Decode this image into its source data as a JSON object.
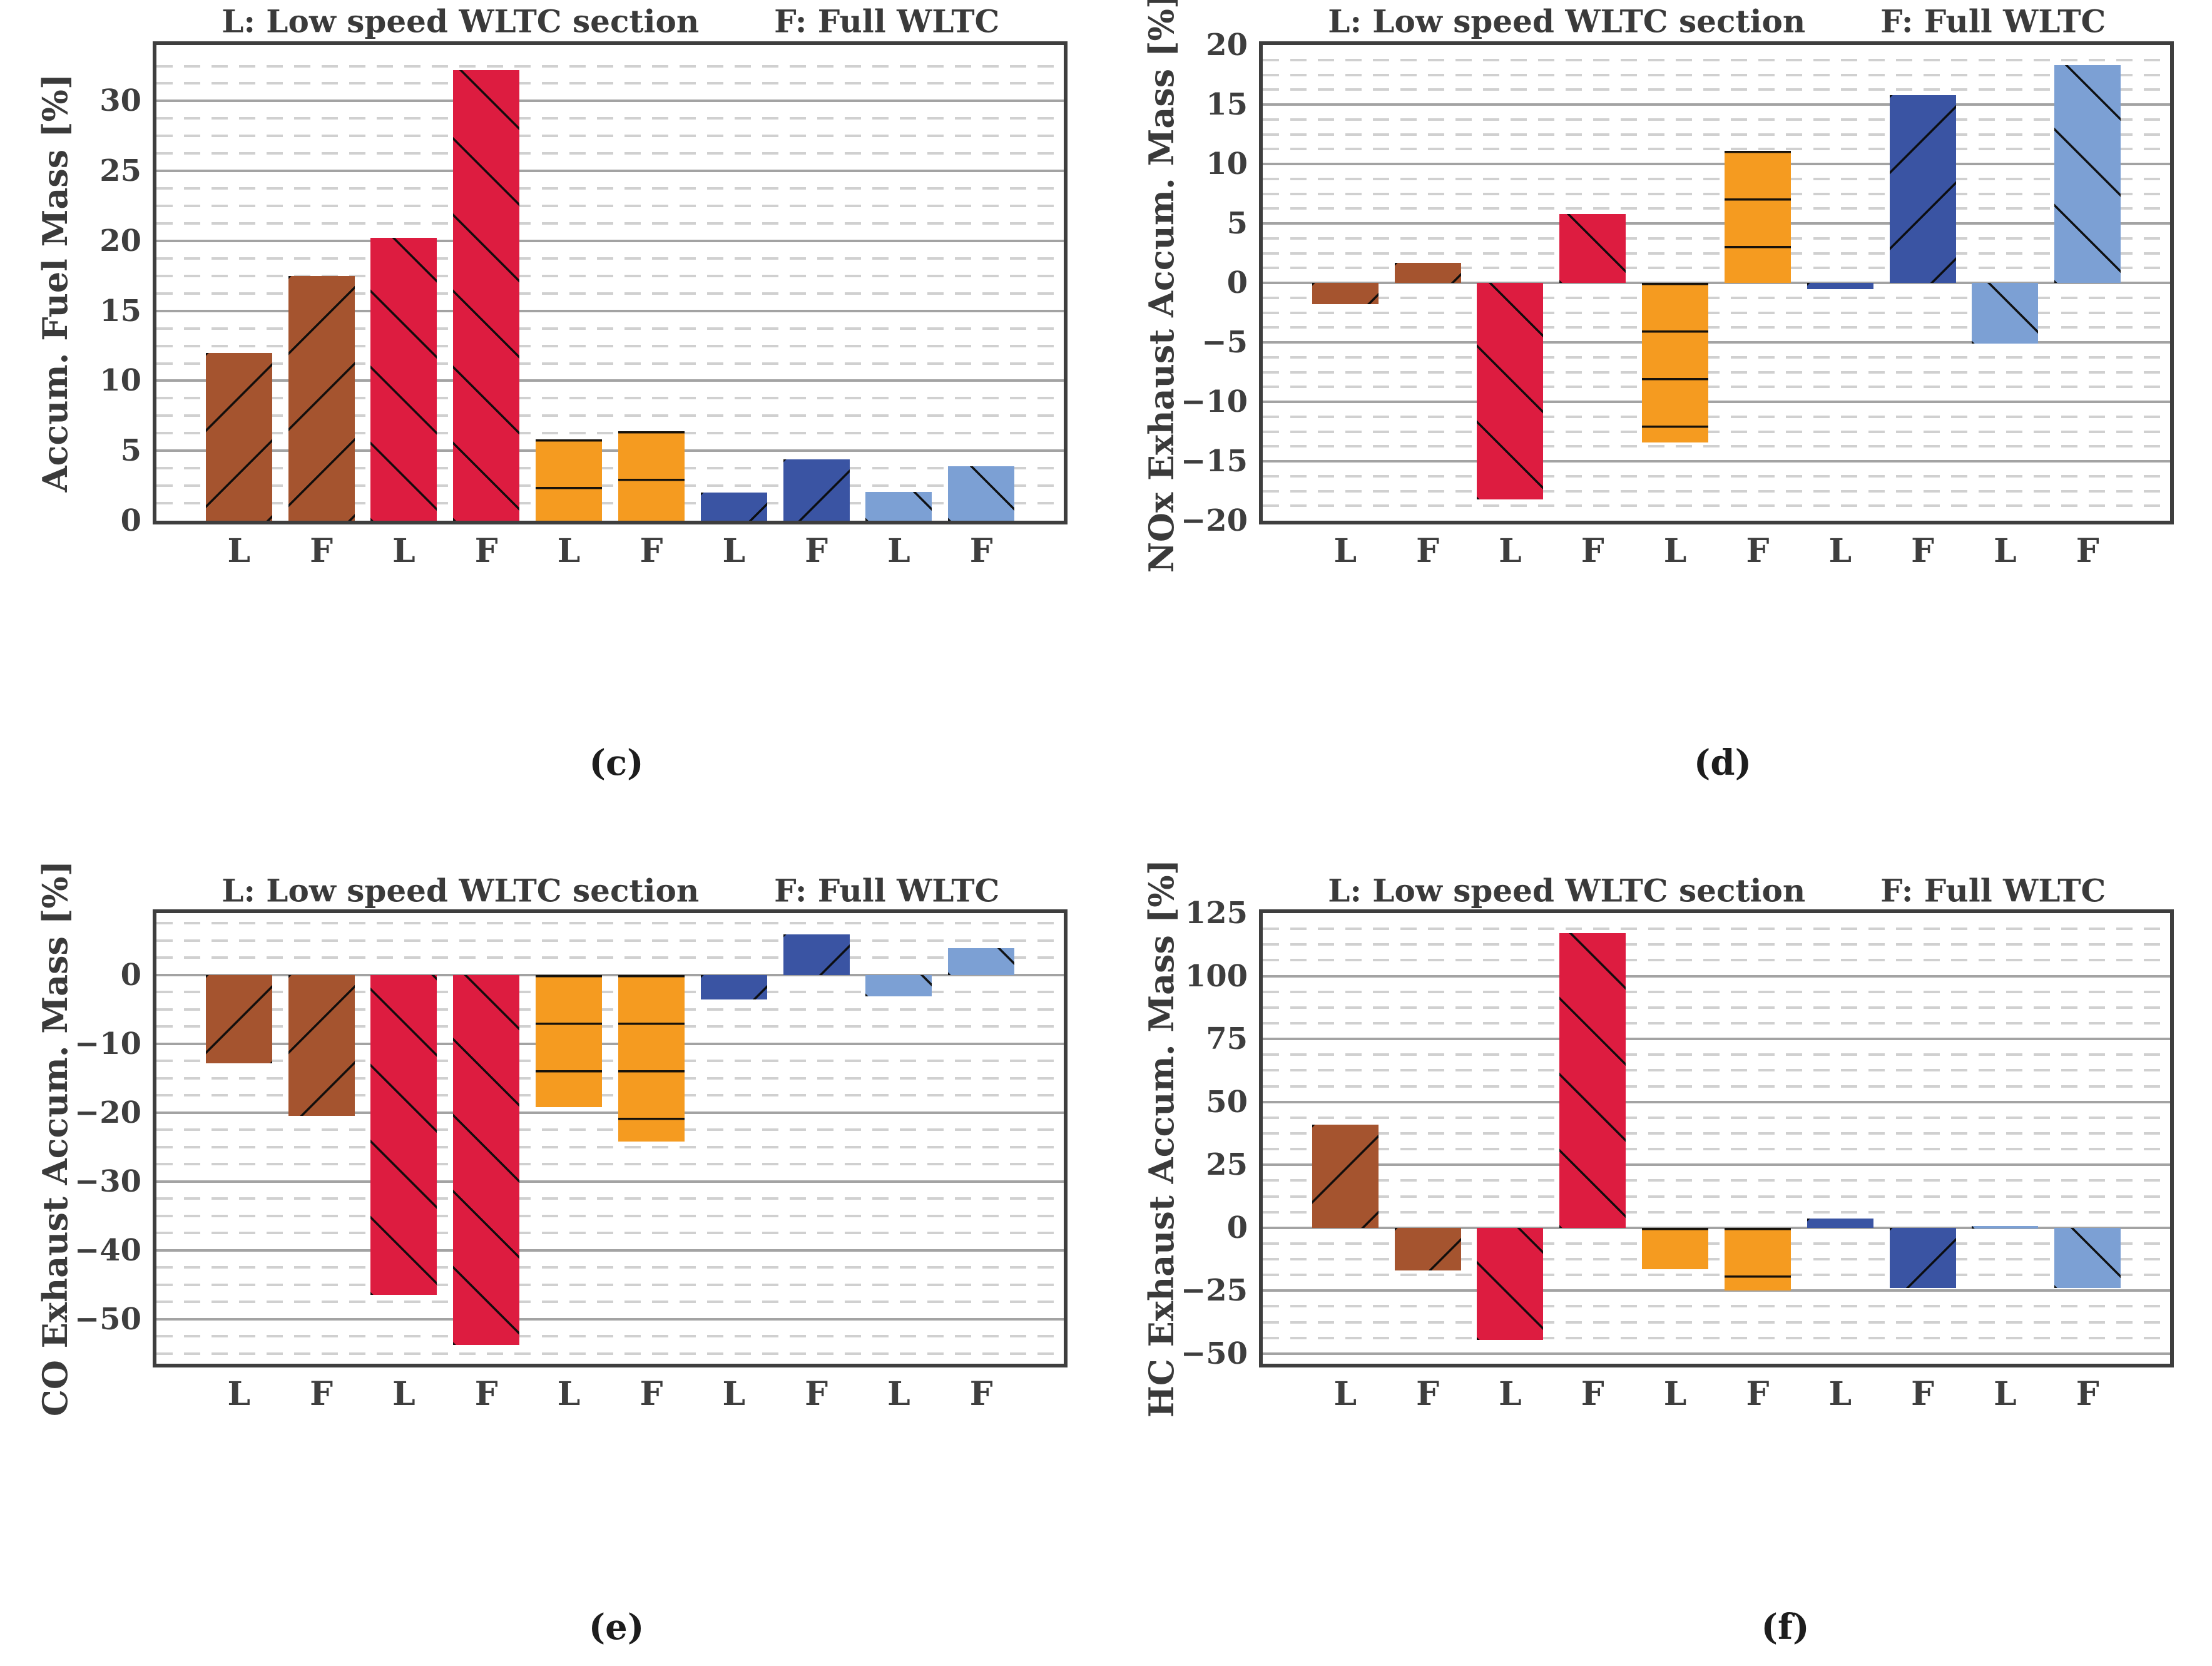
{
  "shared": {
    "title_left": "L: Low speed WLTC section",
    "title_right": "F: Full WLTC",
    "colors": {
      "brown": "#A5542F",
      "red": "#DD1C40",
      "orange": "#F59B20",
      "dark_blue": "#3A54A3",
      "light_blue": "#7CA0D4",
      "frame": "#3e3e3e",
      "grid_major": "#a3a3a3",
      "grid_minor": "#d0d0d0",
      "text": "#3a3a3a",
      "hatch": "#0a0a0a"
    }
  },
  "chart_data": [
    {
      "type": "bar",
      "caption": "(c)",
      "title_left": "L: Low speed WLTC section",
      "title_right": "F: Full WLTC",
      "ylabel": "Accum. Fuel Mass [%]",
      "xlabel": "",
      "ylim": [
        0,
        34
      ],
      "minor_step": 1.25,
      "grid": "major-solid, minor-dashed",
      "legend": "none",
      "yticks": [
        {
          "v": 0,
          "label": "0"
        },
        {
          "v": 5,
          "label": "5"
        },
        {
          "v": 10,
          "label": "10"
        },
        {
          "v": 15,
          "label": "15"
        },
        {
          "v": 20,
          "label": "20"
        },
        {
          "v": 25,
          "label": "25"
        },
        {
          "v": 30,
          "label": "30"
        }
      ],
      "bars": [
        {
          "label": "L",
          "color": "brown",
          "hatch": "/",
          "value": 12.0
        },
        {
          "label": "F",
          "color": "brown",
          "hatch": "/",
          "value": 17.5
        },
        {
          "label": "L",
          "color": "red",
          "hatch": "\\",
          "value": 20.2
        },
        {
          "label": "F",
          "color": "red",
          "hatch": "\\",
          "value": 32.2
        },
        {
          "label": "L",
          "color": "orange",
          "hatch": "-",
          "value": 5.8
        },
        {
          "label": "F",
          "color": "orange",
          "hatch": "-",
          "value": 6.4
        },
        {
          "label": "L",
          "color": "dark_blue",
          "hatch": "/",
          "value": 2.0
        },
        {
          "label": "F",
          "color": "dark_blue",
          "hatch": "/",
          "value": 4.4
        },
        {
          "label": "L",
          "color": "light_blue",
          "hatch": "\\",
          "value": 2.05
        },
        {
          "label": "F",
          "color": "light_blue",
          "hatch": "\\",
          "value": 3.9
        }
      ]
    },
    {
      "type": "bar",
      "caption": "(d)",
      "title_left": "L: Low speed WLTC section",
      "title_right": "F: Full WLTC",
      "ylabel": "NOx Exhaust Accum. Mass [%]",
      "xlabel": "",
      "ylim": [
        -20,
        20
      ],
      "minor_step": 1.25,
      "grid": "major-solid, minor-dashed",
      "legend": "none",
      "yticks": [
        {
          "v": 20,
          "label": "20"
        },
        {
          "v": 15,
          "label": "15"
        },
        {
          "v": 10,
          "label": "10"
        },
        {
          "v": 5,
          "label": "5"
        },
        {
          "v": 0,
          "label": "0"
        },
        {
          "v": -5,
          "label": "−5"
        },
        {
          "v": -10,
          "label": "−10"
        },
        {
          "v": -15,
          "label": "−15"
        },
        {
          "v": -20,
          "label": "−20"
        }
      ],
      "bars": [
        {
          "label": "L",
          "color": "brown",
          "hatch": "/",
          "value": -1.8
        },
        {
          "label": "F",
          "color": "brown",
          "hatch": "/",
          "value": 1.7
        },
        {
          "label": "L",
          "color": "red",
          "hatch": "\\",
          "value": -18.2
        },
        {
          "label": "F",
          "color": "red",
          "hatch": "\\",
          "value": 5.8
        },
        {
          "label": "L",
          "color": "orange",
          "hatch": "-",
          "value": -13.4
        },
        {
          "label": "F",
          "color": "orange",
          "hatch": "-",
          "value": 11.1
        },
        {
          "label": "L",
          "color": "dark_blue",
          "hatch": "/",
          "value": -0.5
        },
        {
          "label": "F",
          "color": "dark_blue",
          "hatch": "/",
          "value": 15.8
        },
        {
          "label": "L",
          "color": "light_blue",
          "hatch": "\\",
          "value": -5.1
        },
        {
          "label": "F",
          "color": "light_blue",
          "hatch": "\\",
          "value": 18.3
        }
      ]
    },
    {
      "type": "bar",
      "caption": "(e)",
      "title_left": "L: Low speed WLTC section",
      "title_right": "F: Full WLTC",
      "ylabel": "CO Exhaust Accum. Mass [%]",
      "xlabel": "",
      "ylim": [
        -56.5,
        9
      ],
      "minor_step": 2.5,
      "grid": "major-solid, minor-dashed",
      "legend": "none",
      "yticks": [
        {
          "v": 0,
          "label": "0"
        },
        {
          "v": -10,
          "label": "−10"
        },
        {
          "v": -20,
          "label": "−20"
        },
        {
          "v": -30,
          "label": "−30"
        },
        {
          "v": -40,
          "label": "−40"
        },
        {
          "v": -50,
          "label": "−50"
        }
      ],
      "bars": [
        {
          "label": "L",
          "color": "brown",
          "hatch": "/",
          "value": -12.8
        },
        {
          "label": "F",
          "color": "brown",
          "hatch": "/",
          "value": -20.5
        },
        {
          "label": "L",
          "color": "red",
          "hatch": "\\",
          "value": -46.5
        },
        {
          "label": "F",
          "color": "red",
          "hatch": "\\",
          "value": -53.8
        },
        {
          "label": "L",
          "color": "orange",
          "hatch": "-",
          "value": -19.2
        },
        {
          "label": "F",
          "color": "orange",
          "hatch": "-",
          "value": -24.2
        },
        {
          "label": "L",
          "color": "dark_blue",
          "hatch": "/",
          "value": -3.6
        },
        {
          "label": "F",
          "color": "dark_blue",
          "hatch": "/",
          "value": 5.9
        },
        {
          "label": "L",
          "color": "light_blue",
          "hatch": "\\",
          "value": -3.1
        },
        {
          "label": "F",
          "color": "light_blue",
          "hatch": "\\",
          "value": 3.9
        }
      ]
    },
    {
      "type": "bar",
      "caption": "(f)",
      "title_left": "L: Low speed WLTC section",
      "title_right": "F: Full WLTC",
      "ylabel": "HC Exhaust Accum. Mass [%]",
      "xlabel": "",
      "ylim": [
        -54,
        125
      ],
      "minor_step": 6.25,
      "grid": "major-solid, minor-dashed",
      "legend": "none",
      "yticks": [
        {
          "v": 125,
          "label": "125"
        },
        {
          "v": 100,
          "label": "100"
        },
        {
          "v": 75,
          "label": "75"
        },
        {
          "v": 50,
          "label": "50"
        },
        {
          "v": 25,
          "label": "25"
        },
        {
          "v": 0,
          "label": "0"
        },
        {
          "v": -25,
          "label": "−25"
        },
        {
          "v": -50,
          "label": "−50"
        }
      ],
      "bars": [
        {
          "label": "L",
          "color": "brown",
          "hatch": "/",
          "value": 41.0
        },
        {
          "label": "F",
          "color": "brown",
          "hatch": "/",
          "value": -17.0
        },
        {
          "label": "L",
          "color": "red",
          "hatch": "\\",
          "value": -44.5
        },
        {
          "label": "F",
          "color": "red",
          "hatch": "\\",
          "value": 117.0
        },
        {
          "label": "L",
          "color": "orange",
          "hatch": "-",
          "value": -16.5
        },
        {
          "label": "F",
          "color": "orange",
          "hatch": "-",
          "value": -25.0
        },
        {
          "label": "L",
          "color": "dark_blue",
          "hatch": "/",
          "value": 3.6
        },
        {
          "label": "F",
          "color": "dark_blue",
          "hatch": "/",
          "value": -24.0
        },
        {
          "label": "L",
          "color": "light_blue",
          "hatch": "\\",
          "value": 0.7
        },
        {
          "label": "F",
          "color": "light_blue",
          "hatch": "\\",
          "value": -24.0
        }
      ]
    }
  ]
}
